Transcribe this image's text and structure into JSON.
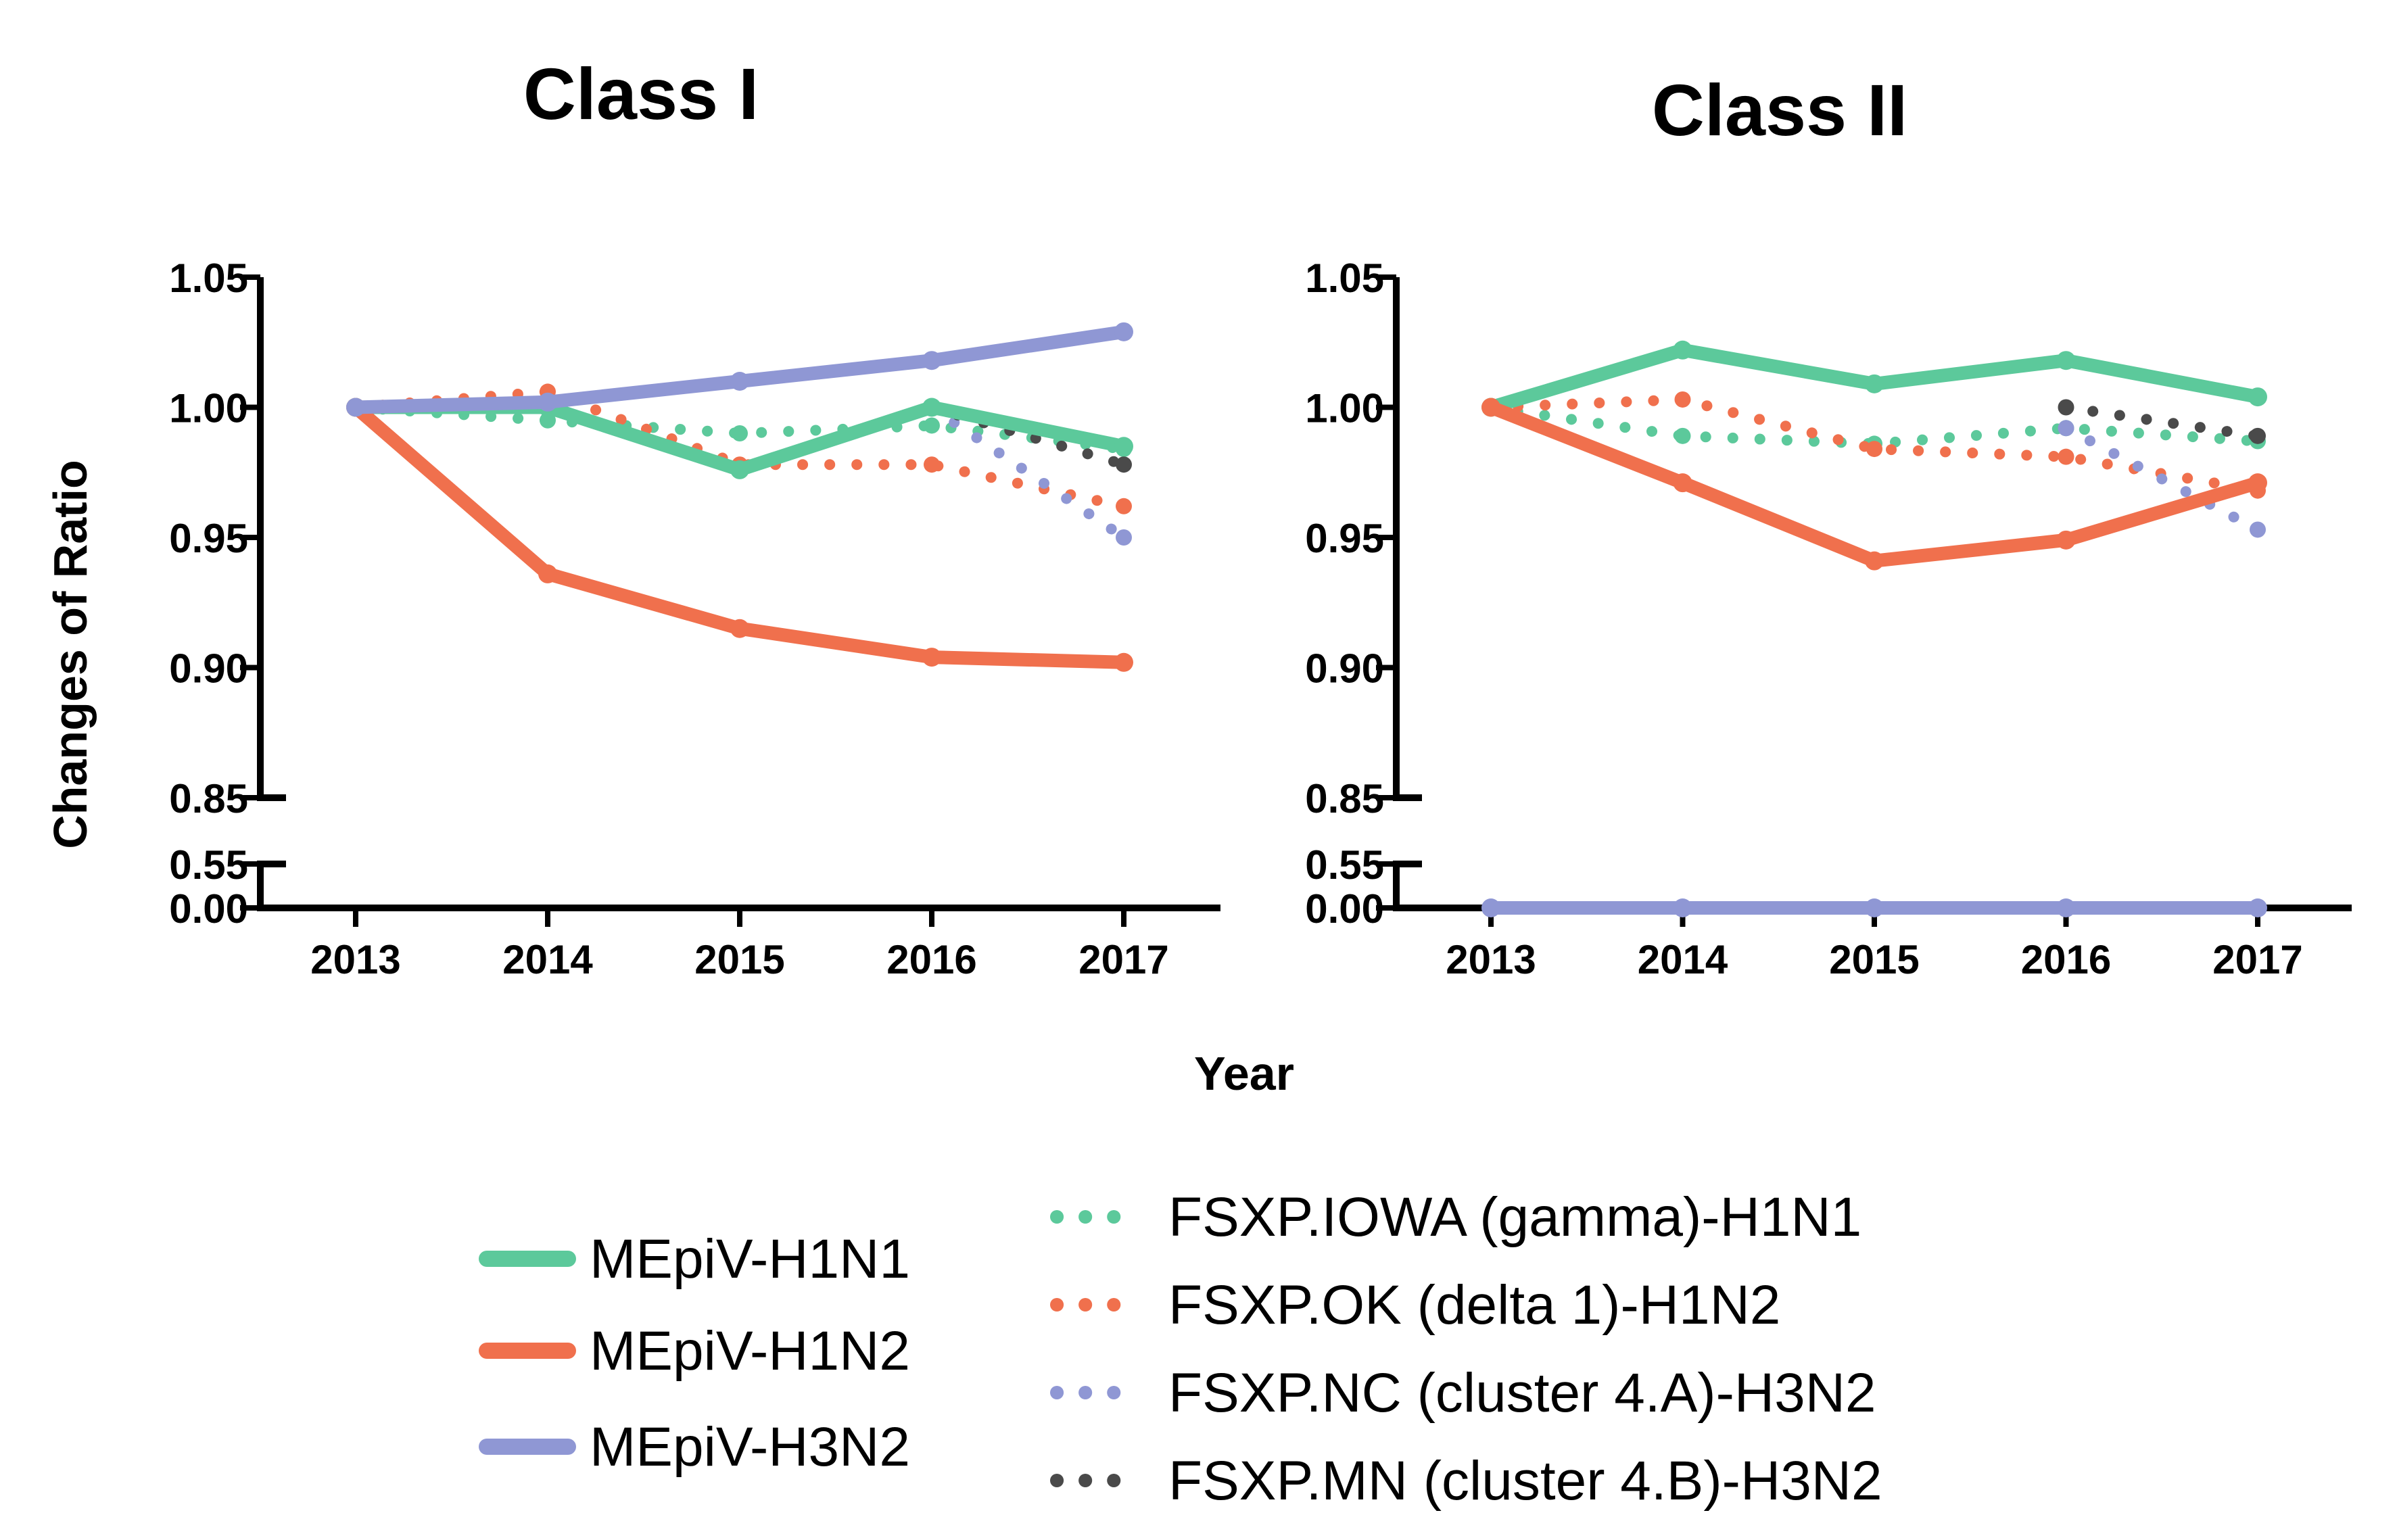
{
  "figure": {
    "xlabel": "Year",
    "ylabel": "Changes of Ratio",
    "colors": {
      "H1N1": "#5cc99b",
      "H1N2": "#f0704d",
      "H3N2": "#8f97d4",
      "MN": "#4a4a4a",
      "axis": "#000000"
    }
  },
  "legend": {
    "solid": [
      {
        "label": "MEpiV-H1N1",
        "color": "#5cc99b"
      },
      {
        "label": "MEpiV-H1N2",
        "color": "#f0704d"
      },
      {
        "label": "MEpiV-H3N2",
        "color": "#8f97d4"
      }
    ],
    "dotted": [
      {
        "label": "FSXP.IOWA (gamma)-H1N1",
        "color": "#5cc99b"
      },
      {
        "label": "FSXP.OK (delta 1)-H1N2",
        "color": "#f0704d"
      },
      {
        "label": "FSXP.NC (cluster 4.A)-H3N2",
        "color": "#8f97d4"
      },
      {
        "label": "FSXP.MN (cluster 4.B)-H3N2",
        "color": "#4a4a4a"
      }
    ]
  },
  "chart_data": [
    {
      "type": "line",
      "title": "Class I",
      "xlabel": "Year",
      "ylabel": "Changes of Ratio",
      "x": [
        2013,
        2014,
        2015,
        2016,
        2017
      ],
      "yticks_upper": [
        "1.05",
        "1.00",
        "0.95",
        "0.90",
        "0.85"
      ],
      "yticks_lower": [
        "0.55",
        "0.00"
      ],
      "ylim_upper": [
        0.85,
        1.05
      ],
      "ylim_lower": [
        0.0,
        0.55
      ],
      "axis_break": true,
      "series": [
        {
          "name": "MEpiV-H1N1",
          "style": "solid",
          "color": "#5cc99b",
          "x": [
            2013,
            2014,
            2015,
            2016,
            2017
          ],
          "values": [
            1.0,
            1.0,
            0.976,
            1.0,
            0.985
          ]
        },
        {
          "name": "MEpiV-H1N2",
          "style": "solid",
          "color": "#f0704d",
          "x": [
            2013,
            2014,
            2015,
            2016,
            2017
          ],
          "values": [
            1.0,
            0.936,
            0.915,
            0.904,
            0.902
          ]
        },
        {
          "name": "MEpiV-H3N2",
          "style": "solid",
          "color": "#8f97d4",
          "x": [
            2013,
            2014,
            2015,
            2016,
            2017
          ],
          "values": [
            1.0,
            1.002,
            1.01,
            1.018,
            1.029
          ]
        },
        {
          "name": "FSXP.IOWA (gamma)-H1N1",
          "style": "dotted",
          "color": "#5cc99b",
          "x": [
            2013,
            2014,
            2015,
            2016,
            2017
          ],
          "values": [
            1.0,
            0.995,
            0.99,
            0.993,
            0.984
          ]
        },
        {
          "name": "FSXP.OK (delta 1)-H1N2",
          "style": "dotted",
          "color": "#f0704d",
          "x": [
            2013,
            2014,
            2015,
            2016,
            2017
          ],
          "values": [
            1.0,
            1.006,
            0.978,
            0.978,
            0.962
          ]
        },
        {
          "name": "FSXP.NC (cluster 4.A)-H3N2",
          "style": "dotted",
          "color": "#8f97d4",
          "x": [
            2016,
            2017
          ],
          "values": [
            1.0,
            0.95
          ]
        },
        {
          "name": "FSXP.MN (cluster 4.B)-H3N2",
          "style": "dotted",
          "color": "#4a4a4a",
          "x": [
            2016,
            2017
          ],
          "values": [
            1.0,
            0.978
          ]
        }
      ]
    },
    {
      "type": "line",
      "title": "Class II",
      "xlabel": "Year",
      "ylabel": "Changes of Ratio",
      "x": [
        2013,
        2014,
        2015,
        2016,
        2017
      ],
      "yticks_upper": [
        "1.05",
        "1.00",
        "0.95",
        "0.90",
        "0.85"
      ],
      "yticks_lower": [
        "0.55",
        "0.00"
      ],
      "ylim_upper": [
        0.85,
        1.05
      ],
      "ylim_lower": [
        0.0,
        0.55
      ],
      "axis_break": true,
      "series": [
        {
          "name": "MEpiV-H1N1",
          "style": "solid",
          "color": "#5cc99b",
          "x": [
            2013,
            2014,
            2015,
            2016,
            2017
          ],
          "values": [
            1.0,
            1.022,
            1.009,
            1.018,
            1.004
          ]
        },
        {
          "name": "MEpiV-H1N2",
          "style": "solid",
          "color": "#f0704d",
          "x": [
            2013,
            2014,
            2015,
            2016,
            2017
          ],
          "values": [
            1.0,
            0.971,
            0.941,
            0.949,
            0.971
          ]
        },
        {
          "name": "MEpiV-H3N2",
          "style": "solid",
          "color": "#8f97d4",
          "x": [
            2013,
            2014,
            2015,
            2016,
            2017
          ],
          "values": [
            0.0,
            0.0,
            0.0,
            0.0,
            0.0
          ]
        },
        {
          "name": "FSXP.IOWA (gamma)-H1N1",
          "style": "dotted",
          "color": "#5cc99b",
          "x": [
            2013,
            2014,
            2015,
            2016,
            2017
          ],
          "values": [
            1.0,
            0.989,
            0.986,
            0.992,
            0.987
          ]
        },
        {
          "name": "FSXP.OK (delta 1)-H1N2",
          "style": "dotted",
          "color": "#f0704d",
          "x": [
            2013,
            2014,
            2015,
            2016,
            2017
          ],
          "values": [
            1.0,
            1.003,
            0.984,
            0.981,
            0.968
          ]
        },
        {
          "name": "FSXP.NC (cluster 4.A)-H3N2",
          "style": "dotted",
          "color": "#8f97d4",
          "x": [
            2016,
            2017
          ],
          "values": [
            0.992,
            0.953
          ]
        },
        {
          "name": "FSXP.MN (cluster 4.B)-H3N2",
          "style": "dotted",
          "color": "#4a4a4a",
          "x": [
            2016,
            2017
          ],
          "values": [
            1.0,
            0.989
          ]
        }
      ]
    }
  ]
}
